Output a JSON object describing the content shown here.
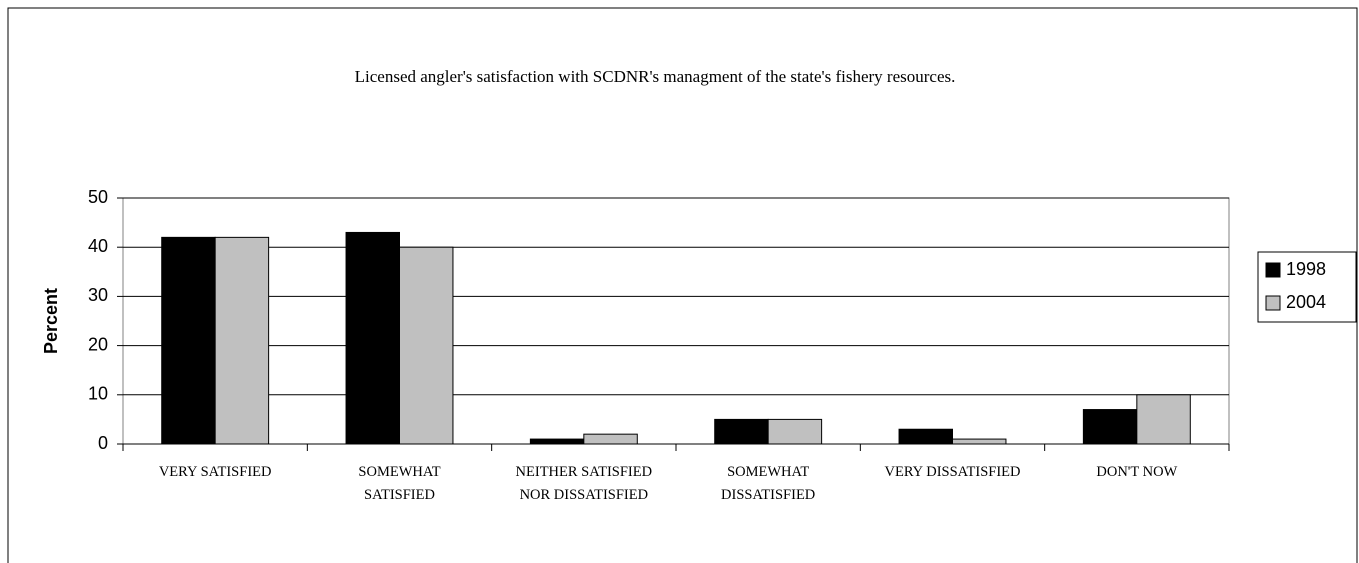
{
  "chart_data": {
    "type": "bar",
    "title": "Licensed angler's satisfaction with SCDNR's managment of the state's fishery resources.",
    "y_label": "Percent",
    "categories": [
      "VERY SATISFIED",
      "SOMEWHAT SATISFIED",
      "NEITHER SATISFIED NOR DISSATISFIED",
      "SOMEWHAT DISSATISFIED",
      "VERY DISSATISFIED",
      "DON'T NOW"
    ],
    "series": [
      {
        "name": "1998",
        "color": "#000000",
        "values": [
          42,
          43,
          1,
          5,
          3,
          7
        ]
      },
      {
        "name": "2004",
        "color": "#c0c0c0",
        "values": [
          42,
          40,
          2,
          5,
          1,
          10
        ]
      }
    ],
    "ylim": [
      0,
      50
    ],
    "yticks": [
      0,
      10,
      20,
      30,
      40,
      50
    ],
    "grid": true,
    "legend": "right"
  }
}
